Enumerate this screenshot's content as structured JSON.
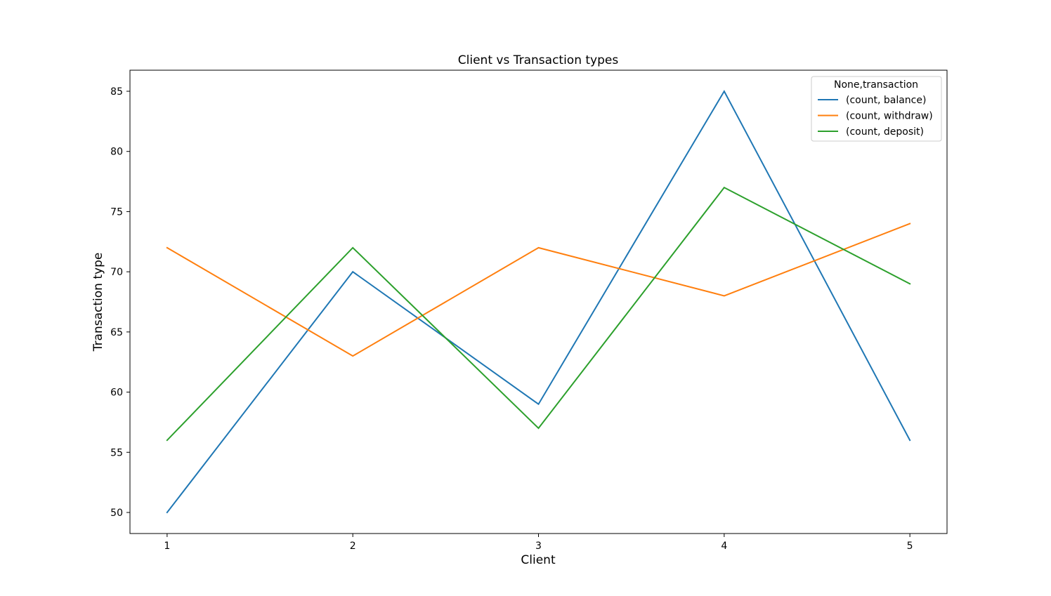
{
  "chart_data": {
    "type": "line",
    "title": "Client vs Transaction types",
    "xlabel": "Client",
    "ylabel": "Transaction type",
    "x": [
      1,
      2,
      3,
      4,
      5
    ],
    "x_ticks": [
      "1",
      "2",
      "3",
      "4",
      "5"
    ],
    "xlim": [
      0.8,
      5.2
    ],
    "y_ticks": [
      "50",
      "55",
      "60",
      "65",
      "70",
      "75",
      "80",
      "85"
    ],
    "ylim": [
      48.25,
      86.75
    ],
    "grid": false,
    "legend": {
      "title": "None,transaction",
      "position": "top-right"
    },
    "series": [
      {
        "name": "(count, balance)",
        "values": [
          50,
          70,
          59,
          85,
          56
        ],
        "color": "#1f77b4"
      },
      {
        "name": "(count, withdraw)",
        "values": [
          72,
          63,
          72,
          68,
          74
        ],
        "color": "#ff7f0e"
      },
      {
        "name": "(count, deposit)",
        "values": [
          56,
          72,
          57,
          77,
          69
        ],
        "color": "#2ca02c"
      }
    ]
  }
}
